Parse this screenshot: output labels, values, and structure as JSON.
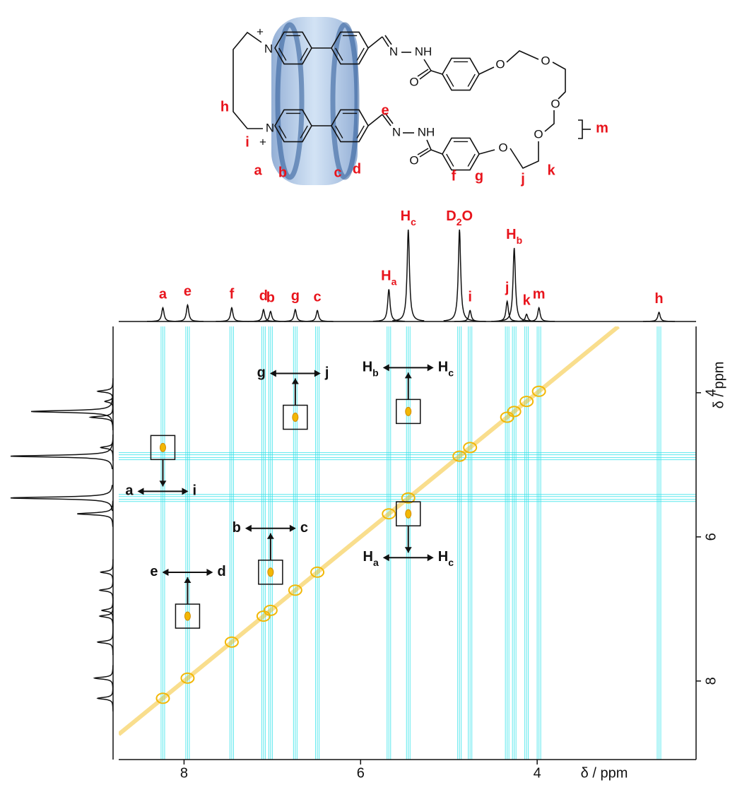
{
  "molecule": {
    "atoms": [
      "N",
      "+",
      "N",
      "+",
      "N",
      "NH",
      "O",
      "O",
      "O",
      "O",
      "O",
      "N",
      "NH",
      "O",
      "O"
    ],
    "proton_labels": [
      "h",
      "i",
      "a",
      "b",
      "c",
      "d",
      "e",
      "f",
      "g",
      "j",
      "k",
      "m"
    ]
  },
  "chart_data": {
    "type": "nmr2d",
    "x_label": "δ / ppm",
    "y_label": "δ / ppm",
    "xlim": [
      8.74,
      2.2
    ],
    "ylim": [
      3.08,
      9.09
    ],
    "xticks": [
      8,
      6,
      4
    ],
    "yticks": [
      4,
      6,
      8
    ],
    "diagonal_color": "#f2b705",
    "streak_color": "#33e3ea",
    "peaks": [
      {
        "base": "a",
        "ppm": 8.24,
        "height": 15
      },
      {
        "base": "e",
        "ppm": 7.96,
        "height": 18
      },
      {
        "base": "f",
        "ppm": 7.46,
        "height": 15
      },
      {
        "base": "d",
        "ppm": 7.1,
        "height": 13
      },
      {
        "base": "b",
        "ppm": 7.02,
        "height": 11
      },
      {
        "base": "g",
        "ppm": 6.74,
        "height": 13
      },
      {
        "base": "c",
        "ppm": 6.49,
        "height": 12
      },
      {
        "base": "H",
        "sub": "a",
        "ppm": 5.68,
        "height": 35
      },
      {
        "base": "H",
        "sub": "c",
        "ppm": 5.46,
        "height": 100
      },
      {
        "base": "D",
        "sub": "2",
        "tail": "O",
        "ppm": 4.88,
        "height": 100
      },
      {
        "base": "i",
        "ppm": 4.76,
        "height": 12
      },
      {
        "base": "j",
        "ppm": 4.34,
        "height": 22
      },
      {
        "base": "H",
        "sub": "b",
        "ppm": 4.26,
        "height": 80
      },
      {
        "base": "k",
        "ppm": 4.12,
        "height": 8
      },
      {
        "base": "m",
        "ppm": 3.98,
        "height": 15
      },
      {
        "base": "h",
        "ppm": 2.62,
        "height": 10
      }
    ],
    "cross_peaks": [
      {
        "labels": [
          {
            "base": "a"
          },
          {
            "base": "i"
          }
        ],
        "x": 8.24,
        "y": 4.76
      },
      {
        "labels": [
          {
            "base": "g"
          },
          {
            "base": "j"
          }
        ],
        "x": 6.74,
        "y": 4.34
      },
      {
        "labels": [
          {
            "base": "H",
            "sub": "b"
          },
          {
            "base": "H",
            "sub": "c"
          }
        ],
        "x": 5.46,
        "y": 4.26
      },
      {
        "labels": [
          {
            "base": "b"
          },
          {
            "base": "c"
          }
        ],
        "x": 7.02,
        "y": 6.49
      },
      {
        "labels": [
          {
            "base": "e"
          },
          {
            "base": "d"
          }
        ],
        "x": 7.96,
        "y": 7.1
      },
      {
        "labels": [
          {
            "base": "H",
            "sub": "a"
          },
          {
            "base": "H",
            "sub": "c"
          }
        ],
        "x": 5.46,
        "y": 5.68
      }
    ]
  }
}
